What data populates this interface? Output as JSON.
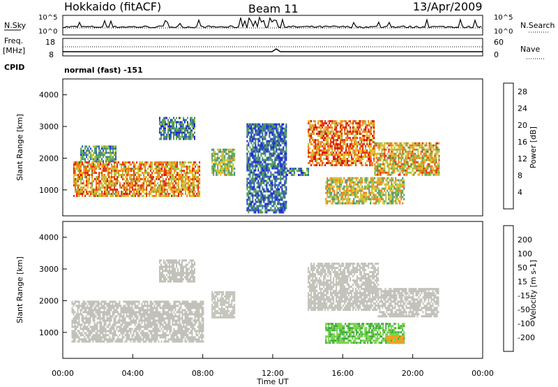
{
  "header": {
    "station": "Hokkaido (fitACF)",
    "beam": "Beam 11",
    "date": "13/Apr/2009"
  },
  "status_panel": {
    "nsky_label": "N.Sky",
    "nsearch_label": "N.Search",
    "freq_label": "Freq.",
    "freq_unit": "[MHz]",
    "nave_label": "Nave",
    "cpid_label": "CPID",
    "cpid_value": "normal (fast) -151",
    "noise_ticks": [
      "10^5",
      "10^0"
    ],
    "noise_right_ticks": [
      "10^5",
      "10^0"
    ],
    "freq_ticks": [
      "18",
      "8"
    ],
    "nave_ticks": [
      "60",
      "0"
    ]
  },
  "colors": {
    "power": [
      "#1b25d4",
      "#2e58c0",
      "#3e8a6f",
      "#58a452",
      "#a8c43c",
      "#f0b820",
      "#f07818",
      "#e03010",
      "#d80000"
    ],
    "velocity": [
      "#2020c8",
      "#3468c8",
      "#30a830",
      "#70d040",
      "#c0c0b8",
      "#f0a020",
      "#f07010",
      "#e03010",
      "#d80000"
    ]
  },
  "chart_data": [
    {
      "type": "heatmap",
      "name": "power",
      "xlabel": "",
      "ylabel": "Slant Range [km]",
      "ylim": [
        180,
        4500
      ],
      "xlim": [
        0,
        24
      ],
      "yticks": [
        "1000",
        "2000",
        "3000",
        "4000"
      ],
      "colorbar": {
        "label": "Power [dB]",
        "ticks": [
          "4",
          "8",
          "12",
          "16",
          "20",
          "24",
          "28"
        ],
        "range": [
          0,
          30
        ]
      },
      "regions": [
        {
          "t": [
            0.6,
            7.8
          ],
          "r": [
            800,
            1900
          ],
          "level": 20
        },
        {
          "t": [
            1.0,
            3.0
          ],
          "r": [
            1900,
            2400
          ],
          "level": 10
        },
        {
          "t": [
            5.5,
            7.5
          ],
          "r": [
            2600,
            3300
          ],
          "level": 8
        },
        {
          "t": [
            8.5,
            9.8
          ],
          "r": [
            1500,
            2300
          ],
          "level": 14
        },
        {
          "t": [
            10.5,
            12.8
          ],
          "r": [
            300,
            3100
          ],
          "level": 6
        },
        {
          "t": [
            12.8,
            14.0
          ],
          "r": [
            1500,
            1700
          ],
          "level": 8
        },
        {
          "t": [
            14.0,
            17.8
          ],
          "r": [
            1800,
            3200
          ],
          "level": 22
        },
        {
          "t": [
            17.8,
            21.5
          ],
          "r": [
            1500,
            2500
          ],
          "level": 18
        },
        {
          "t": [
            15.0,
            19.5
          ],
          "r": [
            600,
            1400
          ],
          "level": 16
        }
      ]
    },
    {
      "type": "heatmap",
      "name": "velocity",
      "xlabel": "Time UT",
      "ylabel": "Slant Range [km]",
      "ylim": [
        180,
        4500
      ],
      "xlim": [
        0,
        24
      ],
      "xticks": [
        "00:00",
        "04:00",
        "08:00",
        "12:00",
        "16:00",
        "20:00",
        "00:00"
      ],
      "yticks": [
        "1000",
        "2000",
        "3000",
        "4000"
      ],
      "colorbar": {
        "label": "Velocity [m s-1]",
        "ticks": [
          "200",
          "100",
          "50",
          "15",
          "-15",
          "-50",
          "-100",
          "-200"
        ],
        "range": [
          -250,
          250
        ]
      },
      "regions": [
        {
          "t": [
            0.5,
            8.0
          ],
          "r": [
            700,
            2000
          ],
          "value": 0
        },
        {
          "t": [
            5.5,
            7.5
          ],
          "r": [
            2600,
            3300
          ],
          "value": 0
        },
        {
          "t": [
            8.5,
            9.8
          ],
          "r": [
            1500,
            2300
          ],
          "value": 5
        },
        {
          "t": [
            14.0,
            18.0
          ],
          "r": [
            1700,
            3200
          ],
          "value": 0
        },
        {
          "t": [
            18.0,
            21.5
          ],
          "r": [
            1500,
            2400
          ],
          "value": 0
        },
        {
          "t": [
            15.0,
            19.5
          ],
          "r": [
            700,
            1300
          ],
          "value": 80
        },
        {
          "t": [
            18.5,
            19.5
          ],
          "r": [
            700,
            900
          ],
          "value": -60
        }
      ]
    }
  ]
}
